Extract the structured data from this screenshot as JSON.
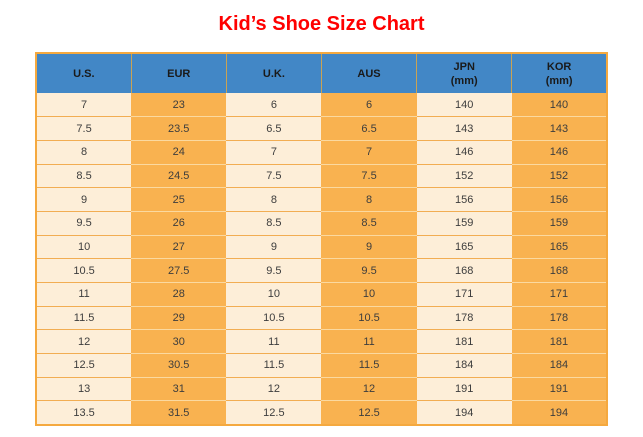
{
  "title": "Kid’s Shoe Size Chart",
  "colors": {
    "title_text": "#ff0000",
    "header_bg": "#4287c6",
    "header_text": "#1a1a1a",
    "header_divider": "#c9a355",
    "light_col_bg": "#fdeed8",
    "orange_col_bg": "#f9b250",
    "border_on_light": "#f2ad52",
    "border_on_orange": "#fbd9a0",
    "outer_border": "#f5a93f",
    "cell_text": "#3d3d3d"
  },
  "chart_data": {
    "type": "table",
    "title": "Kid’s Shoe Size Chart",
    "columns": [
      {
        "label": "U.S.",
        "sub": ""
      },
      {
        "label": "EUR",
        "sub": ""
      },
      {
        "label": "U.K.",
        "sub": ""
      },
      {
        "label": "AUS",
        "sub": ""
      },
      {
        "label": "JPN",
        "sub": "(mm)"
      },
      {
        "label": "KOR",
        "sub": "(mm)"
      }
    ],
    "rows": [
      [
        "7",
        "23",
        "6",
        "6",
        "140",
        "140"
      ],
      [
        "7.5",
        "23.5",
        "6.5",
        "6.5",
        "143",
        "143"
      ],
      [
        "8",
        "24",
        "7",
        "7",
        "146",
        "146"
      ],
      [
        "8.5",
        "24.5",
        "7.5",
        "7.5",
        "152",
        "152"
      ],
      [
        "9",
        "25",
        "8",
        "8",
        "156",
        "156"
      ],
      [
        "9.5",
        "26",
        "8.5",
        "8.5",
        "159",
        "159"
      ],
      [
        "10",
        "27",
        "9",
        "9",
        "165",
        "165"
      ],
      [
        "10.5",
        "27.5",
        "9.5",
        "9.5",
        "168",
        "168"
      ],
      [
        "11",
        "28",
        "10",
        "10",
        "171",
        "171"
      ],
      [
        "11.5",
        "29",
        "10.5",
        "10.5",
        "178",
        "178"
      ],
      [
        "12",
        "30",
        "11",
        "11",
        "181",
        "181"
      ],
      [
        "12.5",
        "30.5",
        "11.5",
        "11.5",
        "184",
        "184"
      ],
      [
        "13",
        "31",
        "12",
        "12",
        "191",
        "191"
      ],
      [
        "13.5",
        "31.5",
        "12.5",
        "12.5",
        "194",
        "194"
      ]
    ]
  }
}
